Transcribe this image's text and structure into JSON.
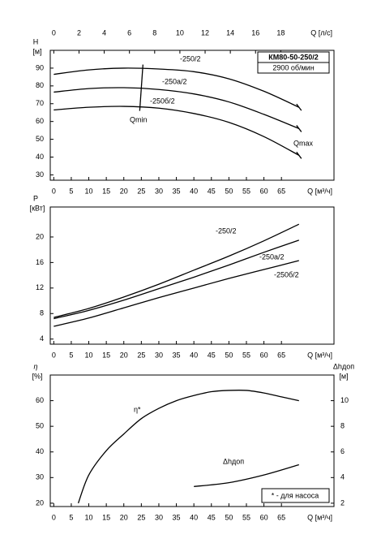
{
  "chart_data": [
    {
      "type": "line",
      "x_label": "Q [м³/ч]",
      "x2_label": "Q [л/с]",
      "y_label": "H",
      "y_unit": "[м]",
      "xlim": [
        -1,
        80
      ],
      "xticks": [
        0,
        5,
        10,
        15,
        20,
        25,
        30,
        35,
        40,
        45,
        50,
        55,
        60,
        65
      ],
      "x2lim": [
        -0.28,
        22.22
      ],
      "x2ticks": [
        0,
        2,
        4,
        6,
        8,
        10,
        12,
        14,
        16,
        18
      ],
      "ylim": [
        27,
        100
      ],
      "yticks": [
        30,
        40,
        50,
        60,
        70,
        80,
        90
      ],
      "box": {
        "title": "КМ80-50-250/2",
        "subtitle": "2900 об/мин"
      },
      "annotations": [
        {
          "text": "Qmin",
          "x": 25,
          "y": [
            66,
            92
          ]
        },
        {
          "text": "Qmax"
        }
      ],
      "series": [
        {
          "name": "-250/2",
          "color": "#000000",
          "x": [
            0,
            10,
            20,
            30,
            40,
            50,
            60,
            70
          ],
          "values": [
            86.5,
            89,
            90,
            89.5,
            88,
            84,
            77,
            68
          ]
        },
        {
          "name": "-250а/2",
          "color": "#000000",
          "x": [
            0,
            10,
            20,
            30,
            40,
            50,
            60,
            70
          ],
          "values": [
            76.5,
            78.5,
            79,
            78,
            75.5,
            71,
            64,
            56
          ]
        },
        {
          "name": "-250б/2",
          "color": "#000000",
          "x": [
            0,
            10,
            20,
            30,
            40,
            50,
            60,
            70
          ],
          "values": [
            66.5,
            68,
            68.5,
            67.5,
            64.5,
            59.5,
            51.5,
            41
          ]
        }
      ]
    },
    {
      "type": "line",
      "x_label": "Q [м³/ч]",
      "y_label": "P",
      "y_unit": "[кВт]",
      "xlim": [
        -1,
        80
      ],
      "xticks": [
        0,
        5,
        10,
        15,
        20,
        25,
        30,
        35,
        40,
        45,
        50,
        55,
        60,
        65
      ],
      "ylim": [
        3.2,
        24.7
      ],
      "yticks": [
        4,
        8,
        12,
        16,
        20
      ],
      "series": [
        {
          "name": "-250/2",
          "color": "#000000",
          "x": [
            0,
            10,
            20,
            30,
            40,
            50,
            60,
            70
          ],
          "values": [
            7.4,
            8.8,
            10.6,
            12.6,
            14.8,
            17.0,
            19.4,
            22.0
          ]
        },
        {
          "name": "-250а/2",
          "color": "#000000",
          "x": [
            0,
            10,
            20,
            30,
            40,
            50,
            60,
            70
          ],
          "values": [
            7.2,
            8.5,
            10.1,
            11.9,
            13.7,
            15.6,
            17.6,
            19.5
          ]
        },
        {
          "name": "-250б/2",
          "color": "#000000",
          "x": [
            0,
            10,
            20,
            30,
            40,
            50,
            60,
            70
          ],
          "values": [
            6.0,
            7.3,
            8.9,
            10.5,
            12.0,
            13.5,
            14.9,
            16.3
          ]
        }
      ]
    },
    {
      "type": "line",
      "x_label": "Q [м³/ч]",
      "y_label": "η",
      "y_unit": "[%]",
      "y2_label": "Δhдоп",
      "y2_unit": "[м]",
      "xlim": [
        -1,
        80
      ],
      "xticks": [
        0,
        5,
        10,
        15,
        20,
        25,
        30,
        35,
        40,
        45,
        50,
        55,
        60,
        65
      ],
      "ylim": [
        18.7,
        70
      ],
      "yticks": [
        20,
        30,
        40,
        50,
        60
      ],
      "y2lim": [
        1.74,
        12
      ],
      "y2ticks": [
        2,
        4,
        6,
        8,
        10
      ],
      "note": "* - для насоса",
      "series": [
        {
          "name": "η*",
          "color": "#000000",
          "x": [
            7,
            10,
            15,
            20,
            25,
            30,
            35,
            40,
            45,
            50,
            55,
            60,
            65,
            70
          ],
          "values": [
            20,
            31,
            40.5,
            47,
            53,
            57,
            60,
            62,
            63.5,
            64,
            64,
            63,
            61.5,
            60
          ]
        },
        {
          "name": "Δhдоп",
          "color": "#000000",
          "axis": "y2",
          "x": [
            40,
            50,
            60,
            70
          ],
          "values": [
            3.3,
            3.6,
            4.2,
            5.0
          ]
        }
      ]
    }
  ]
}
